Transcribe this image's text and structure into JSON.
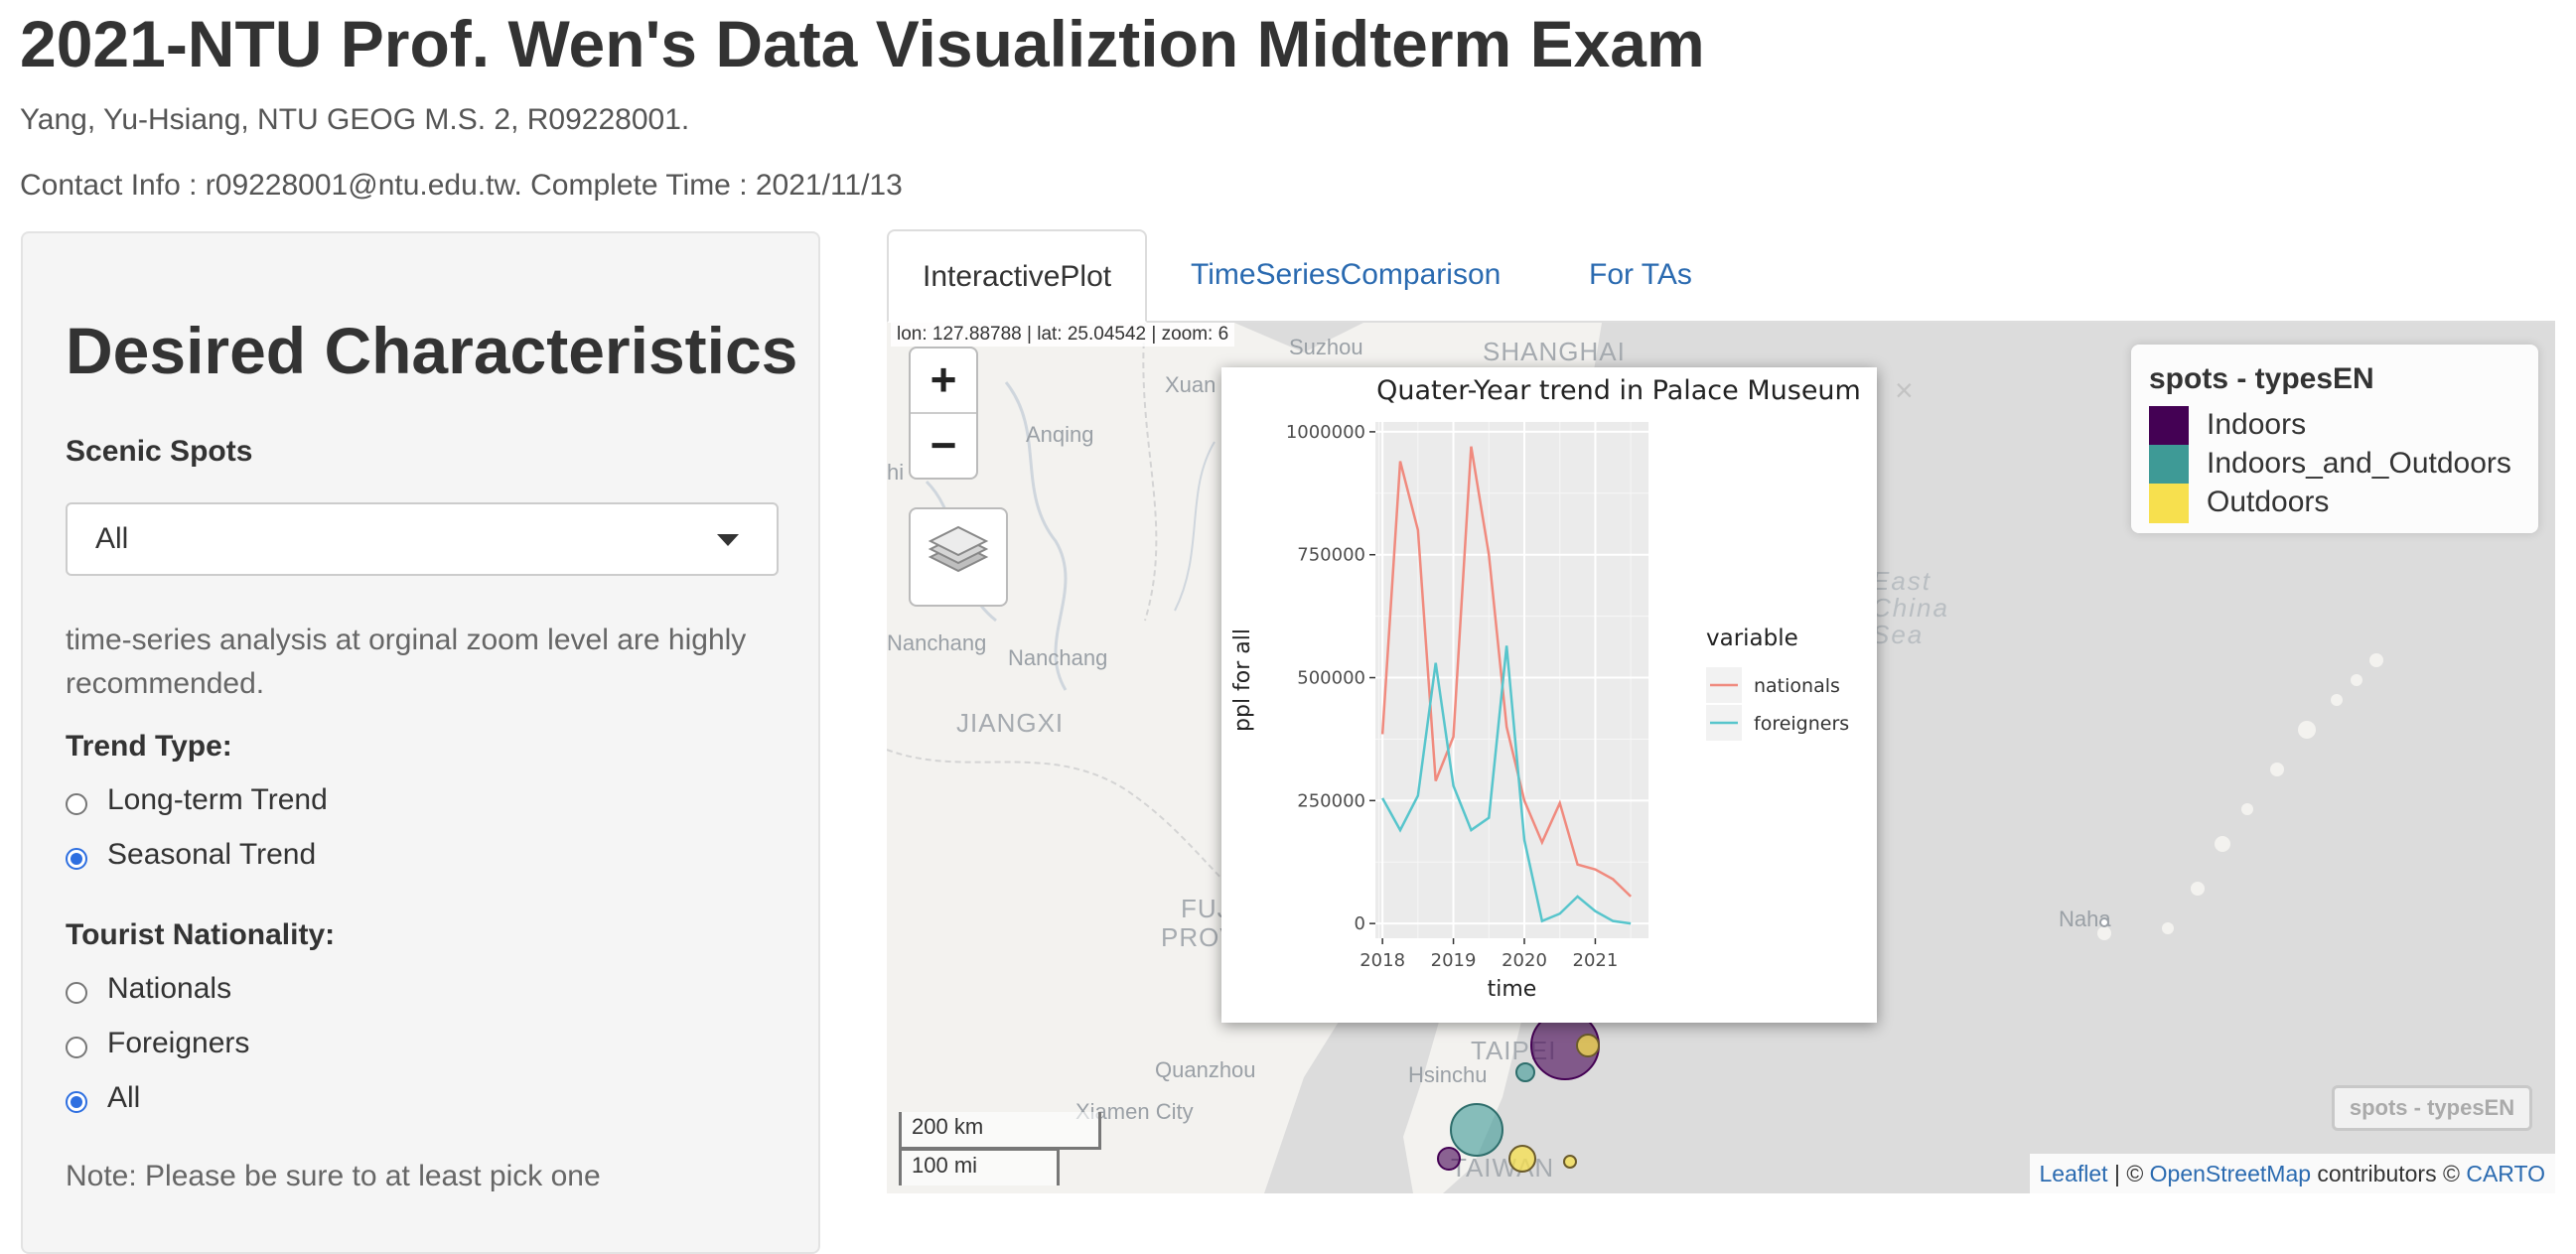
{
  "page": {
    "title": "2021-NTU Prof. Wen's Data Visualiztion Midterm Exam",
    "author_line": "Yang, Yu-Hsiang, NTU GEOG M.S. 2, R09228001.",
    "contact_line": "Contact Info : r09228001@ntu.edu.tw. Complete Time : 2021/11/13"
  },
  "sidebar": {
    "heading": "Desired Characteristics",
    "scenic_label": "Scenic Spots",
    "scenic_value": "All",
    "help_text": "time-series analysis at orginal zoom level are highly recommended.",
    "trend_label": "Trend Type:",
    "trend_options": [
      {
        "label": "Long-term Trend",
        "checked": false
      },
      {
        "label": "Seasonal Trend",
        "checked": true
      }
    ],
    "nationality_label": "Tourist Nationality:",
    "nationality_options": [
      {
        "label": "Nationals",
        "checked": false
      },
      {
        "label": "Foreigners",
        "checked": false
      },
      {
        "label": "All",
        "checked": true
      }
    ],
    "note": "Note: Please be sure to at least pick one"
  },
  "tabs": [
    {
      "label": "InteractivePlot",
      "active": true
    },
    {
      "label": "TimeSeriesComparison",
      "active": false
    },
    {
      "label": "For TAs",
      "active": false
    }
  ],
  "map": {
    "coords": "lon: 127.88788 | lat: 25.04542 | zoom: 6",
    "zoom_in": "+",
    "zoom_out": "−",
    "labels": {
      "suzhou": "Suzhou",
      "shanghai": "SHANGHAI",
      "xuan": "Xuan",
      "anqing": "Anqing",
      "hi": "hi",
      "nanchang_left": "Nanchang",
      "nanchang": "Nanchang",
      "jiangxi": "JIANGXI",
      "east": "East",
      "china": "China",
      "sea": "Sea",
      "fu": "FUJ",
      "prov": "PROV",
      "quanzhou": "Quanzhou",
      "xiamen": "Xiamen City",
      "hsinchu": "Hsinchu",
      "taipei": "TAIPEI",
      "taiwan": "TAIWAN",
      "naha": "Naha"
    },
    "legend_title": "spots - typesEN",
    "legend_items": [
      {
        "label": "Indoors",
        "color": "#440154"
      },
      {
        "label": "Indoors_and_Outdoors",
        "color": "#3e9a96"
      },
      {
        "label": "Outdoors",
        "color": "#f7e04e"
      }
    ],
    "legend_toggle": "spots - typesEN",
    "scale_km": "200 km",
    "scale_mi": "100 mi",
    "attribution": {
      "leaflet": "Leaflet",
      "sep1": " | © ",
      "osm": "OpenStreetMap",
      "mid": " contributors © ",
      "carto": "CARTO"
    },
    "popup_close": "×"
  },
  "chart_data": {
    "type": "line",
    "title": "Quater-Year trend in Palace Museum",
    "xlabel": "time",
    "ylabel": "ppl for all",
    "xlim": [
      2017.9,
      2021.75
    ],
    "ylim": [
      -30000,
      1020000
    ],
    "x_ticks": [
      2018,
      2019,
      2020,
      2021
    ],
    "x_tick_labels": [
      "2018",
      "2019",
      "2020",
      "2021"
    ],
    "y_ticks": [
      0,
      250000,
      500000,
      750000,
      1000000
    ],
    "y_tick_labels": [
      "0",
      "250000",
      "500000",
      "750000",
      "1000000"
    ],
    "legend_title": "variable",
    "legend_position": "right",
    "grid": true,
    "x": [
      2018.0,
      2018.25,
      2018.5,
      2018.75,
      2019.0,
      2019.25,
      2019.5,
      2019.75,
      2020.0,
      2020.25,
      2020.5,
      2020.75,
      2021.0,
      2021.25,
      2021.5
    ],
    "series": [
      {
        "name": "nationals",
        "color": "#f08a7e",
        "values": [
          385000,
          940000,
          800000,
          290000,
          380000,
          970000,
          750000,
          400000,
          250000,
          165000,
          245000,
          120000,
          110000,
          90000,
          55000
        ]
      },
      {
        "name": "foreigners",
        "color": "#57c5cc",
        "values": [
          255000,
          190000,
          260000,
          530000,
          280000,
          190000,
          215000,
          565000,
          170000,
          5000,
          20000,
          55000,
          25000,
          5000,
          0
        ]
      }
    ]
  }
}
